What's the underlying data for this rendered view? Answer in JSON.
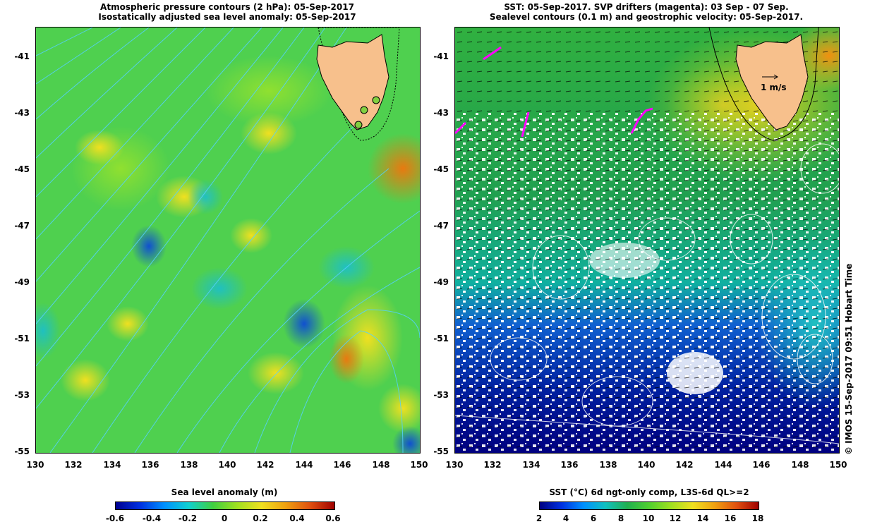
{
  "left_panel": {
    "title_line1": "Atmospheric pressure contours (2 hPa): 05-Sep-2017",
    "title_line2": "Isostatically adjusted sea level anomaly: 05-Sep-2017",
    "y_ticks": [
      "-41",
      "-43",
      "-45",
      "-47",
      "-49",
      "-51",
      "-53",
      "-55"
    ],
    "x_ticks": [
      "130",
      "132",
      "134",
      "136",
      "138",
      "140",
      "142",
      "144",
      "146",
      "148",
      "150"
    ],
    "colorbar_title": "Sea level anomaly (m)",
    "colorbar_ticks": [
      "-0.6",
      "-0.4",
      "-0.2",
      "0",
      "0.2",
      "0.4",
      "0.6"
    ]
  },
  "right_panel": {
    "title_line1": "SST: 05-Sep-2017. SVP drifters (magenta): 03 Sep - 07 Sep.",
    "title_line2": "Sealevel contours (0.1 m) and geostrophic velocity: 05-Sep-2017.",
    "y_ticks": [
      "-41",
      "-43",
      "-45",
      "-47",
      "-49",
      "-51",
      "-53",
      "-55"
    ],
    "x_ticks": [
      "130",
      "132",
      "134",
      "136",
      "138",
      "140",
      "142",
      "144",
      "146",
      "148",
      "150"
    ],
    "velocity_scale_label": "1 m/s",
    "colorbar_title": "SST (°C) 6d ngt-only comp, L3S-6d QL>=2",
    "colorbar_ticks": [
      "2",
      "4",
      "6",
      "8",
      "10",
      "12",
      "14",
      "16",
      "18"
    ]
  },
  "credit": "© IMOS 15-Sep-2017 09:51 Hobart Time",
  "colors": {
    "land": "#f7c08c",
    "sla_mid": "#4fd04f",
    "drifter": "#ff00ff",
    "contour": "#55d0ff"
  }
}
